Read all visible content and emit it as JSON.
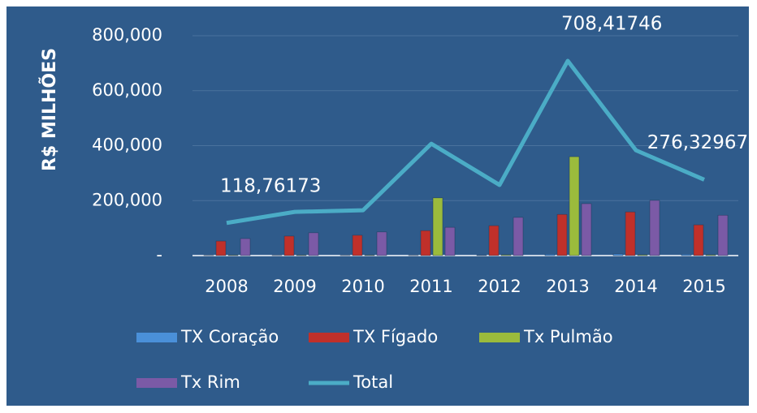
{
  "chart_data": {
    "type": "bar",
    "y_label": "R$ MILHÕES",
    "categories": [
      "2008",
      "2009",
      "2010",
      "2011",
      "2012",
      "2013",
      "2014",
      "2015"
    ],
    "series": [
      {
        "name": "TX Coração",
        "color": "#4a90d9",
        "values": [
          1,
          1,
          1,
          1,
          2,
          5,
          6,
          5
        ]
      },
      {
        "name": "TX Fígado",
        "color": "#c0302a",
        "values": [
          53,
          71,
          74,
          91,
          109,
          150,
          159,
          112
        ]
      },
      {
        "name": "Tx Pulmão",
        "color": "#9bbb3c",
        "values": [
          2,
          2,
          2,
          210,
          3,
          360,
          3,
          3
        ]
      },
      {
        "name": "Tx Rim",
        "color": "#7b5aa6",
        "values": [
          62,
          83,
          86,
          103,
          139,
          189,
          201,
          147
        ]
      },
      {
        "name": "Total",
        "color": "#4bacc6",
        "type": "line",
        "values": [
          118.76173,
          159,
          165,
          407,
          257,
          708.41746,
          383,
          276.32967
        ],
        "value_labels": [
          "118,76173",
          null,
          null,
          null,
          null,
          "708,41746",
          null,
          "276,32967"
        ]
      }
    ],
    "ylim": [
      0,
      800
    ],
    "yticks": [
      {
        "value": 0,
        "label": "-"
      },
      {
        "value": 200,
        "label": "200,000"
      },
      {
        "value": 400,
        "label": "400,000"
      },
      {
        "value": 600,
        "label": "600,000"
      },
      {
        "value": 800,
        "label": "800,000"
      }
    ],
    "grid": true
  }
}
